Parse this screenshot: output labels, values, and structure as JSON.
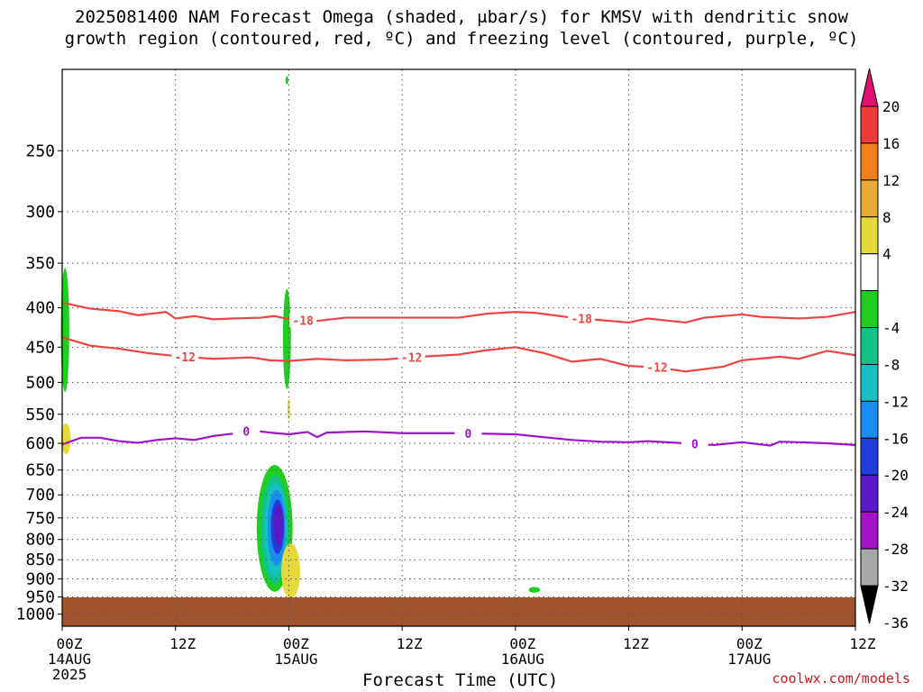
{
  "title": {
    "line1": "2025081400 NAM Forecast Omega (shaded, μbar/s) for KMSV with dendritic snow",
    "line2": "growth region (contoured, red, ºC) and freezing level (contoured, purple, ºC)"
  },
  "watermark": "coolwx.com/models",
  "chart_data": {
    "type": "heatmap",
    "xlabel": "Forecast Time (UTC)",
    "ylabel": "",
    "x_ticks": [
      {
        "hours": 0,
        "label": "00Z",
        "sub": "14AUG",
        "sub2": "2025"
      },
      {
        "hours": 12,
        "label": "12Z",
        "sub": "",
        "sub2": ""
      },
      {
        "hours": 24,
        "label": "00Z",
        "sub": "15AUG",
        "sub2": ""
      },
      {
        "hours": 36,
        "label": "12Z",
        "sub": "",
        "sub2": ""
      },
      {
        "hours": 48,
        "label": "00Z",
        "sub": "16AUG",
        "sub2": ""
      },
      {
        "hours": 60,
        "label": "12Z",
        "sub": "",
        "sub2": ""
      },
      {
        "hours": 72,
        "label": "00Z",
        "sub": "17AUG",
        "sub2": ""
      },
      {
        "hours": 84,
        "label": "12Z",
        "sub": "",
        "sub2": ""
      }
    ],
    "xlim_hours": [
      0,
      84
    ],
    "y_ticks": [
      250,
      300,
      350,
      400,
      450,
      500,
      550,
      600,
      650,
      700,
      750,
      800,
      850,
      900,
      950,
      1000
    ],
    "ylim_hpa": [
      1037,
      196
    ],
    "y_scale": "log-pressure",
    "grid": true,
    "colorbar": {
      "labels": [
        "20",
        "16",
        "12",
        "8",
        "4",
        "-4",
        "-8",
        "-12",
        "-16",
        "-20",
        "-24",
        "-28",
        "-32",
        "-36"
      ],
      "bands": [
        {
          "from": 16,
          "to": 20,
          "color": "#ee3a3a"
        },
        {
          "from": 12,
          "to": 16,
          "color": "#f07f1d"
        },
        {
          "from": 8,
          "to": 12,
          "color": "#e8a935"
        },
        {
          "from": 4,
          "to": 8,
          "color": "#e5d93c"
        },
        {
          "from": -4,
          "to": 4,
          "color": "#ffffff"
        },
        {
          "from": -8,
          "to": -4,
          "color": "#1fcf1f"
        },
        {
          "from": -12,
          "to": -8,
          "color": "#12c385"
        },
        {
          "from": -16,
          "to": -12,
          "color": "#16bfc0"
        },
        {
          "from": -20,
          "to": -16,
          "color": "#1b8cf2"
        },
        {
          "from": -24,
          "to": -20,
          "color": "#1f3dd8"
        },
        {
          "from": -28,
          "to": -24,
          "color": "#5b18c9"
        },
        {
          "from": -32,
          "to": -28,
          "color": "#a414c4"
        },
        {
          "from": -36,
          "to": -32,
          "color": "#a8a8a8"
        }
      ],
      "over_color": "#e2106f",
      "under_color": "#000000"
    },
    "ground_color": "#a0532a",
    "contours": [
      {
        "label": "-18",
        "color": "#ee4444",
        "points": [
          [
            0,
            394
          ],
          [
            3,
            401
          ],
          [
            6,
            404
          ],
          [
            8,
            409
          ],
          [
            11,
            405
          ],
          [
            12,
            413
          ],
          [
            14,
            410
          ],
          [
            16,
            414
          ],
          [
            18,
            413
          ],
          [
            21,
            412
          ],
          [
            22.5,
            410
          ],
          [
            24,
            414
          ],
          [
            27,
            416
          ],
          [
            30,
            412
          ],
          [
            36,
            412
          ],
          [
            42,
            412
          ],
          [
            45,
            407
          ],
          [
            48,
            405
          ],
          [
            50,
            406
          ],
          [
            54,
            412
          ],
          [
            57,
            415
          ],
          [
            60,
            418
          ],
          [
            62,
            413
          ],
          [
            66,
            418
          ],
          [
            68,
            412
          ],
          [
            72,
            408
          ],
          [
            74,
            411
          ],
          [
            78,
            413
          ],
          [
            81,
            411
          ],
          [
            84,
            405
          ]
        ],
        "labels_at": [
          25.5,
          55
        ]
      },
      {
        "label": "-12",
        "color": "#ee4444",
        "points": [
          [
            0,
            437
          ],
          [
            3,
            448
          ],
          [
            6,
            452
          ],
          [
            9,
            458
          ],
          [
            12,
            462
          ],
          [
            16,
            466
          ],
          [
            20,
            464
          ],
          [
            22,
            468
          ],
          [
            24,
            469
          ],
          [
            27,
            466
          ],
          [
            30,
            468
          ],
          [
            34,
            467
          ],
          [
            38,
            463
          ],
          [
            42,
            460
          ],
          [
            45,
            454
          ],
          [
            48,
            450
          ],
          [
            51,
            458
          ],
          [
            54,
            470
          ],
          [
            57,
            466
          ],
          [
            60,
            476
          ],
          [
            63,
            478
          ],
          [
            66,
            484
          ],
          [
            70,
            477
          ],
          [
            72,
            468
          ],
          [
            76,
            463
          ],
          [
            78,
            466
          ],
          [
            81,
            455
          ],
          [
            84,
            461
          ]
        ],
        "labels_at": [
          13,
          37,
          63
        ]
      },
      {
        "label": "0",
        "color": "#9e12c9",
        "points": [
          [
            0,
            602
          ],
          [
            2,
            590
          ],
          [
            4,
            590
          ],
          [
            6,
            596
          ],
          [
            8,
            599
          ],
          [
            10,
            594
          ],
          [
            12,
            591
          ],
          [
            14,
            594
          ],
          [
            16,
            587
          ],
          [
            18,
            583
          ],
          [
            20,
            577
          ],
          [
            22,
            581
          ],
          [
            24,
            584
          ],
          [
            26,
            580
          ],
          [
            27,
            589
          ],
          [
            28,
            581
          ],
          [
            30,
            580
          ],
          [
            32,
            579
          ],
          [
            36,
            582
          ],
          [
            42,
            582
          ],
          [
            48,
            584
          ],
          [
            51,
            589
          ],
          [
            54,
            594
          ],
          [
            57,
            597
          ],
          [
            60,
            598
          ],
          [
            62,
            596
          ],
          [
            66,
            600
          ],
          [
            69,
            603
          ],
          [
            72,
            598
          ],
          [
            75,
            604
          ],
          [
            76,
            597
          ],
          [
            78,
            598
          ],
          [
            81,
            600
          ],
          [
            84,
            603
          ]
        ],
        "labels_at": [
          19.5,
          43,
          67
        ]
      }
    ],
    "omega_features": [
      {
        "t": 0.3,
        "p_top": 355,
        "p_bot": 515,
        "half_width_h": 0.45,
        "value": -6
      },
      {
        "t": 23.8,
        "p_top": 378,
        "p_bot": 510,
        "half_width_h": 0.42,
        "value": -6
      },
      {
        "t": 22.5,
        "p_top": 640,
        "p_bot": 935,
        "half_width_h": 1.9,
        "value": -6
      },
      {
        "t": 22.5,
        "p_top": 660,
        "p_bot": 915,
        "half_width_h": 1.5,
        "value": -10
      },
      {
        "t": 22.6,
        "p_top": 675,
        "p_bot": 895,
        "half_width_h": 1.2,
        "value": -14
      },
      {
        "t": 22.7,
        "p_top": 690,
        "p_bot": 865,
        "half_width_h": 0.95,
        "value": -18
      },
      {
        "t": 22.8,
        "p_top": 710,
        "p_bot": 835,
        "half_width_h": 0.7,
        "value": -22
      },
      {
        "t": 22.9,
        "p_top": 720,
        "p_bot": 815,
        "half_width_h": 0.5,
        "value": -26
      },
      {
        "t": 24.2,
        "p_top": 810,
        "p_bot": 955,
        "half_width_h": 1.0,
        "value": 6
      },
      {
        "t": 0.4,
        "p_top": 565,
        "p_bot": 620,
        "half_width_h": 0.5,
        "value": 6
      },
      {
        "t": 24.0,
        "p_top": 525,
        "p_bot": 560,
        "half_width_h": 0.15,
        "value": 6
      },
      {
        "t": 50.0,
        "p_top": 922,
        "p_bot": 938,
        "half_width_h": 0.6,
        "value": -6
      },
      {
        "t": 23.8,
        "p_top": 200,
        "p_bot": 205,
        "half_width_h": 0.15,
        "value": -6
      }
    ]
  }
}
